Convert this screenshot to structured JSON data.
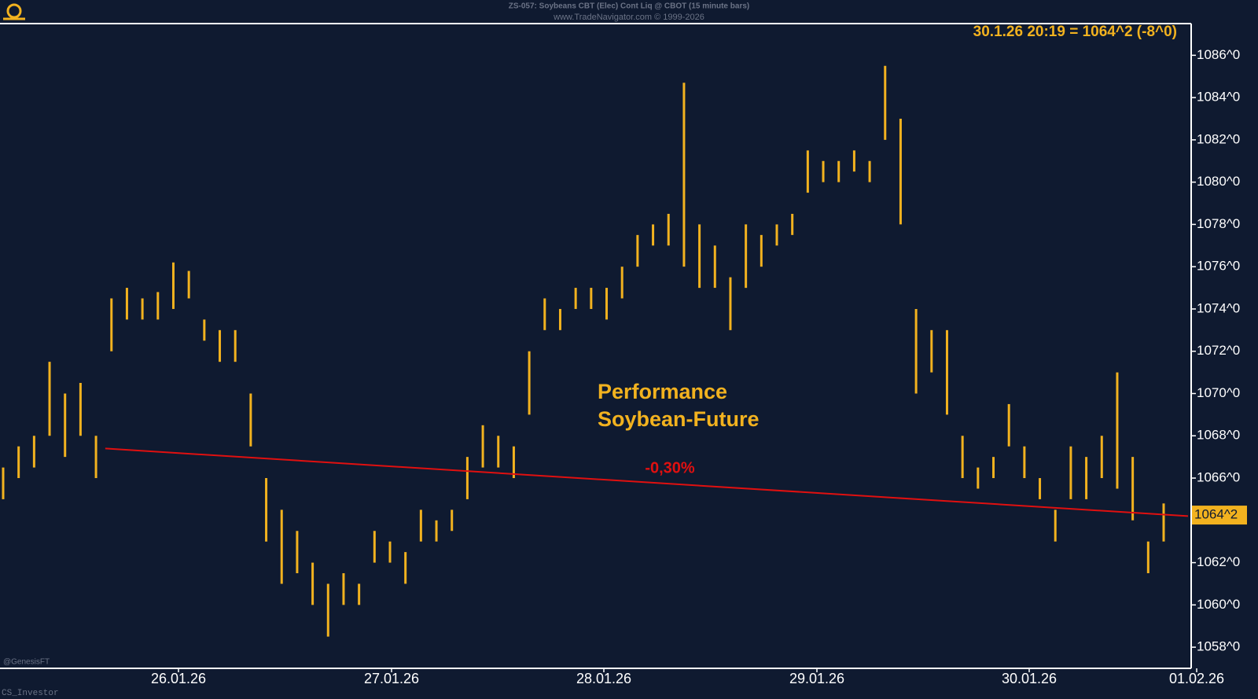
{
  "chart_data": {
    "type": "bar-range",
    "title": "ZS-057: Soybeans CBT (Elec) Cont Liq @ CBOT (15 minute bars)",
    "subtitle": "www.TradeNavigator.com © 1999-2026",
    "last_quote": "30.1.26 20:19 = 1064^2 (-8^0)",
    "annotation": [
      "Performance",
      "Soybean-Future"
    ],
    "watermarks": [
      "@GenesisFT",
      "CS_Investor"
    ],
    "color": "#f2b21f",
    "low": [
      1065,
      1066,
      1066.5,
      1068,
      1067,
      1068,
      1066,
      1072,
      1073.5,
      1073.5,
      1073.5,
      1074,
      1074.5,
      1072.5,
      1071.5,
      1071.5,
      1067.5,
      1063,
      1061,
      1061.5,
      1060,
      1058.5,
      1060,
      1060,
      1062,
      1062,
      1061,
      1063,
      1063,
      1063.5,
      1065,
      1066.5,
      1066.5,
      1066,
      1069,
      1073,
      1073,
      1074,
      1074,
      1073.5,
      1074.5,
      1076,
      1077,
      1077,
      1076,
      1075,
      1075,
      1073,
      1075,
      1076,
      1077,
      1077.5,
      1079.5,
      1080,
      1080,
      1080.5,
      1080,
      1082,
      1078,
      1070,
      1071,
      1069,
      1066,
      1065.5,
      1066,
      1067.5,
      1066,
      1065,
      1063,
      1065,
      1065,
      1066,
      1065.5,
      1064,
      1061.5,
      1063
    ],
    "high": [
      1066.5,
      1067.5,
      1068,
      1071.5,
      1070,
      1070.5,
      1068,
      1074.5,
      1075,
      1074.5,
      1074.8,
      1076.2,
      1075.8,
      1073.5,
      1073,
      1073,
      1070,
      1066,
      1064.5,
      1063.5,
      1062,
      1061,
      1061.5,
      1061,
      1063.5,
      1063,
      1062.5,
      1064.5,
      1064,
      1064.5,
      1067,
      1068.5,
      1068,
      1067.5,
      1072,
      1074.5,
      1074,
      1075,
      1075,
      1075,
      1076,
      1077.5,
      1078,
      1078.5,
      1084.7,
      1078,
      1077,
      1075.5,
      1078,
      1077.5,
      1078,
      1078.5,
      1081.5,
      1081,
      1081,
      1081.5,
      1081,
      1085.5,
      1083,
      1074,
      1073,
      1073,
      1068,
      1066.5,
      1067,
      1069.5,
      1067.5,
      1066,
      1064.5,
      1067.5,
      1067,
      1068,
      1071,
      1067,
      1063,
      1064.8
    ],
    "x_labels": [
      "26.01.26",
      "27.01.26",
      "28.01.26",
      "29.01.26",
      "30.01.26",
      "01.02.26"
    ],
    "ylim": [
      1057,
      1087.5
    ],
    "yticks": [
      {
        "value": 1058,
        "label": "1058^0"
      },
      {
        "value": 1060,
        "label": "1060^0"
      },
      {
        "value": 1062,
        "label": "1062^0"
      },
      {
        "value": 1064,
        "label": "1064^0"
      },
      {
        "value": 1066,
        "label": "1066^0"
      },
      {
        "value": 1068,
        "label": "1068^0"
      },
      {
        "value": 1070,
        "label": "1070^0"
      },
      {
        "value": 1072,
        "label": "1072^0"
      },
      {
        "value": 1074,
        "label": "1074^0"
      },
      {
        "value": 1076,
        "label": "1076^0"
      },
      {
        "value": 1078,
        "label": "1078^0"
      },
      {
        "value": 1080,
        "label": "1080^0"
      },
      {
        "value": 1082,
        "label": "1082^0"
      },
      {
        "value": 1084,
        "label": "1084^0"
      },
      {
        "value": 1086,
        "label": "1086^0"
      }
    ],
    "price_tag": {
      "value": 1064.25,
      "label": "1064^2",
      "color": "#f2b21f"
    },
    "trend_line": {
      "label": "-0,30%",
      "values": [
        1067.4,
        1064.2
      ],
      "color": "#e01010"
    }
  }
}
